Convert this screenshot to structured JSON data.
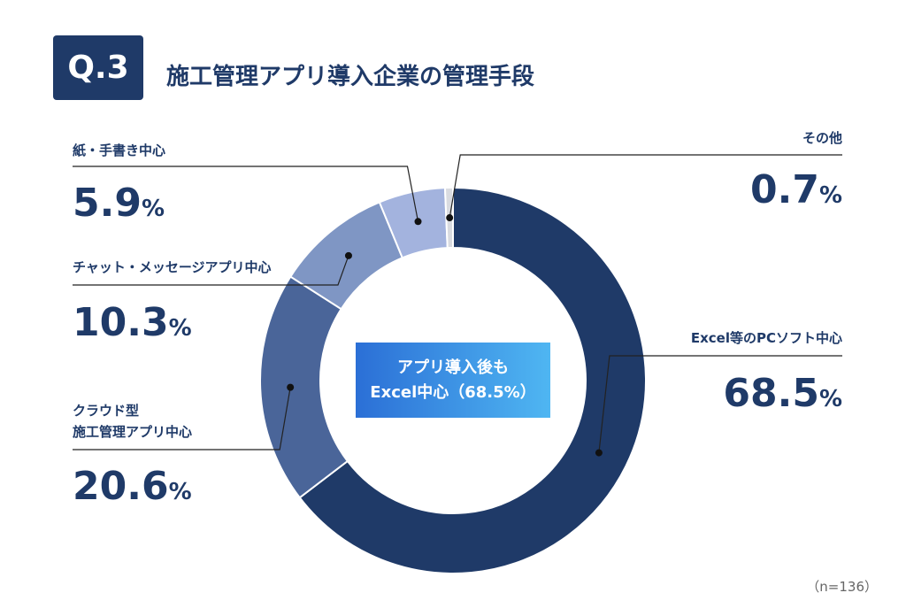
{
  "badge": "Q.3",
  "note": "（n=136）",
  "chart_data": {
    "type": "donut",
    "title": "施工管理アプリ導入企業の管理手段",
    "unit": "%",
    "categories": [
      "Excel等のPCソフト中心",
      "クラウド型\n施工管理アプリ中心",
      "チャット・メッセージアプリ中心",
      "紙・手書き中心",
      "その他"
    ],
    "values": [
      68.5,
      20.6,
      10.3,
      5.9,
      0.7
    ],
    "colors": [
      "#1f3a68",
      "#4a6599",
      "#7f96c4",
      "#a3b3de",
      "#d9dbe0"
    ],
    "annotation": [
      "アプリ導入後も",
      "Excel中心（68.5%）"
    ]
  }
}
